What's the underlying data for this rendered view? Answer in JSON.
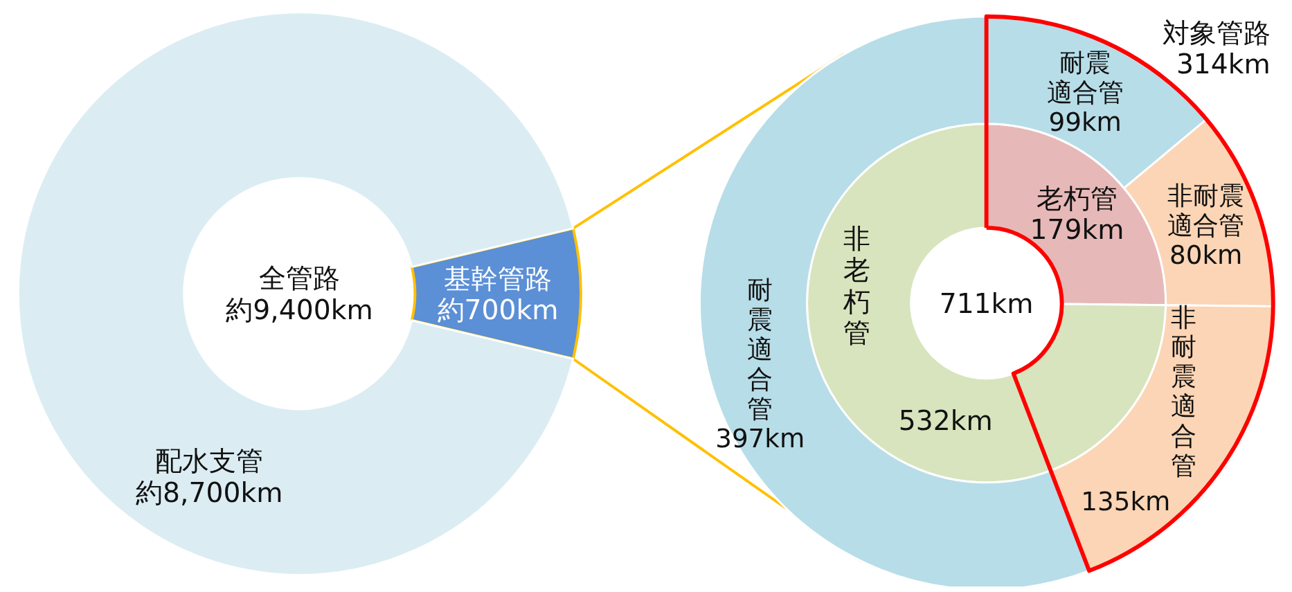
{
  "chart_data": [
    {
      "type": "donut",
      "categories": [
        "基幹管路",
        "配水支管"
      ],
      "values": [
        700,
        8700
      ],
      "colors": [
        "#5b8fd6",
        "#dbedf3"
      ],
      "value_labels": [
        "約700km",
        "約8,700km"
      ],
      "annotations": [
        "全管路約9,400km"
      ]
    },
    {
      "type": "donut",
      "categories": [
        "老朽管",
        "非老朽管"
      ],
      "values": [
        179,
        532
      ],
      "colors": [
        "#e6b9b8",
        "#d8e4bd"
      ],
      "value_labels": [
        "179km",
        "532km"
      ],
      "annotations": [
        "711km"
      ]
    },
    {
      "type": "donut",
      "categories": [
        "耐震適合管",
        "非耐震適合管",
        "非耐震適合管",
        "耐震適合管"
      ],
      "values": [
        99,
        80,
        135,
        397
      ],
      "colors": [
        "#b7dde8",
        "#fbd5b5",
        "#fbd5b5",
        "#b7dde8"
      ],
      "value_labels": [
        "99km",
        "80km",
        "135km",
        "397km"
      ],
      "annotations": [
        "対象管路314km"
      ]
    }
  ]
}
